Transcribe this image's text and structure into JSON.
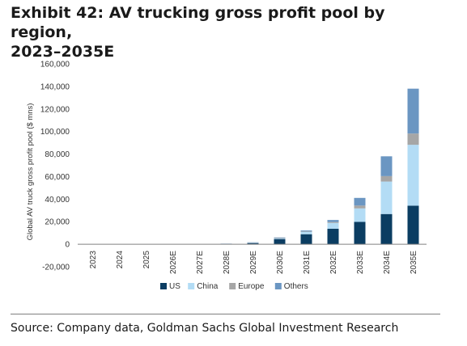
{
  "header": {
    "title_line1": "Exhibit 42: AV trucking gross profit pool by region,",
    "title_line2": "2023–2035E"
  },
  "footer": {
    "source": "Source: Company data, Goldman Sachs Global Investment Research"
  },
  "chart_data": {
    "type": "bar",
    "stacked": true,
    "categories": [
      "2023",
      "2024",
      "2025",
      "2026E",
      "2027E",
      "2028E",
      "2029E",
      "2030E",
      "2031E",
      "2032E",
      "2033E",
      "2034E",
      "2035E"
    ],
    "series": [
      {
        "name": "US",
        "color": "#0b3d62",
        "values": [
          0,
          0,
          0,
          0,
          0,
          200,
          900,
          4600,
          8900,
          13700,
          19800,
          26800,
          34200
        ]
      },
      {
        "name": "China",
        "color": "#b3dcf5",
        "values": [
          0,
          0,
          0,
          0,
          0,
          150,
          400,
          700,
          2000,
          5200,
          12000,
          28800,
          54000
        ]
      },
      {
        "name": "Europe",
        "color": "#a6a6a6",
        "values": [
          0,
          0,
          0,
          0,
          0,
          50,
          100,
          200,
          400,
          800,
          2500,
          4800,
          10000
        ]
      },
      {
        "name": "Others",
        "color": "#6b96c2",
        "values": [
          0,
          0,
          0,
          0,
          0,
          100,
          300,
          500,
          900,
          1800,
          6800,
          17600,
          39800
        ]
      }
    ],
    "ylabel": "Global AV truck gross profit pool ($ mns)",
    "ylim": [
      -20000,
      160000
    ],
    "yticks": [
      -20000,
      0,
      20000,
      40000,
      60000,
      80000,
      100000,
      120000,
      140000,
      160000
    ],
    "ytick_labels": [
      "-20,000",
      "0",
      "20,000",
      "40,000",
      "60,000",
      "80,000",
      "100,000",
      "120,000",
      "140,000",
      "160,000"
    ],
    "grid": false,
    "legend_position": "bottom"
  }
}
